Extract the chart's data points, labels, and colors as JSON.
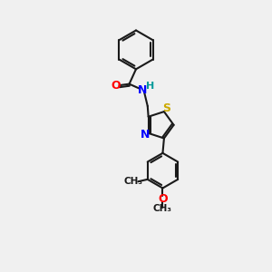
{
  "background_color": "#f0f0f0",
  "bond_color": "#1a1a1a",
  "atom_colors": {
    "O": "#ff0000",
    "N": "#0000ff",
    "S": "#ccaa00",
    "H": "#009999",
    "C": "#1a1a1a"
  },
  "font_size": 9,
  "figsize": [
    3.0,
    3.0
  ],
  "dpi": 100,
  "xlim": [
    0,
    10
  ],
  "ylim": [
    0,
    10
  ]
}
